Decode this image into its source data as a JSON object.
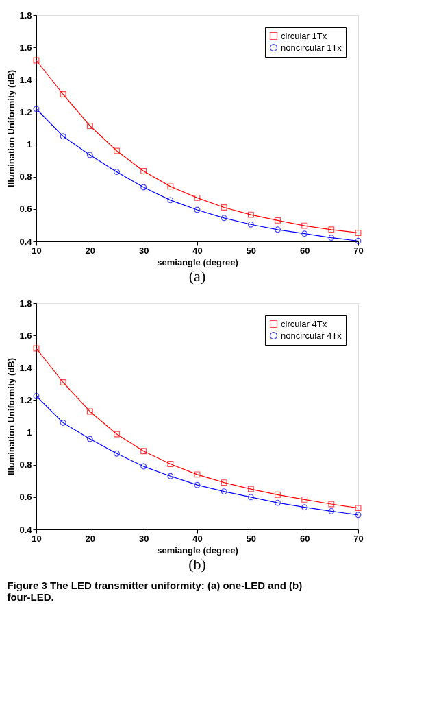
{
  "chart_data": [
    {
      "type": "line",
      "title": "(a)",
      "xlabel": "semiangle (degree)",
      "ylabel": "Illumination Uniformity (dB)",
      "x": [
        10,
        15,
        20,
        25,
        30,
        35,
        40,
        45,
        50,
        55,
        60,
        65,
        70
      ],
      "series": [
        {
          "name": "circular 1Tx",
          "color": "#ff0000",
          "marker": "square",
          "values": [
            1.52,
            1.31,
            1.115,
            0.96,
            0.835,
            0.74,
            0.67,
            0.61,
            0.565,
            0.53,
            0.497,
            0.473,
            0.453
          ]
        },
        {
          "name": "noncircular 1Tx",
          "color": "#0000ff",
          "marker": "circle",
          "values": [
            1.22,
            1.05,
            0.935,
            0.83,
            0.735,
            0.655,
            0.595,
            0.545,
            0.505,
            0.473,
            0.448,
            0.423,
            0.403
          ]
        }
      ],
      "xlim": [
        10,
        70
      ],
      "xticks": [
        10,
        20,
        30,
        40,
        50,
        60,
        70
      ],
      "ylim": [
        0.4,
        1.8
      ],
      "yticks": [
        0.4,
        0.6,
        0.8,
        1,
        1.2,
        1.4,
        1.6,
        1.8
      ],
      "grid": false,
      "legend": "top right",
      "line_style": "solid"
    },
    {
      "type": "line",
      "title": "(b)",
      "xlabel": "semiangle (degree)",
      "ylabel": "Illumination Uniformity (dB)",
      "x": [
        10,
        15,
        20,
        25,
        30,
        35,
        40,
        45,
        50,
        55,
        60,
        65,
        70
      ],
      "series": [
        {
          "name": "circular 4Tx",
          "color": "#ff0000",
          "marker": "square",
          "values": [
            1.52,
            1.31,
            1.13,
            0.99,
            0.885,
            0.805,
            0.74,
            0.69,
            0.65,
            0.615,
            0.585,
            0.557,
            0.533
          ]
        },
        {
          "name": "noncircular 4Tx",
          "color": "#0000ff",
          "marker": "circle",
          "values": [
            1.225,
            1.06,
            0.96,
            0.87,
            0.79,
            0.73,
            0.675,
            0.635,
            0.6,
            0.565,
            0.537,
            0.513,
            0.49
          ]
        }
      ],
      "xlim": [
        10,
        70
      ],
      "xticks": [
        10,
        20,
        30,
        40,
        50,
        60,
        70
      ],
      "ylim": [
        0.4,
        1.8
      ],
      "yticks": [
        0.4,
        0.6,
        0.8,
        1,
        1.2,
        1.4,
        1.6,
        1.8
      ],
      "grid": false,
      "legend": "top right",
      "line_style": "solid",
      "annotations": [
        "Figure 3 The LED transmitter uniformity: (a) one-LED and (b) four-LED."
      ]
    }
  ]
}
